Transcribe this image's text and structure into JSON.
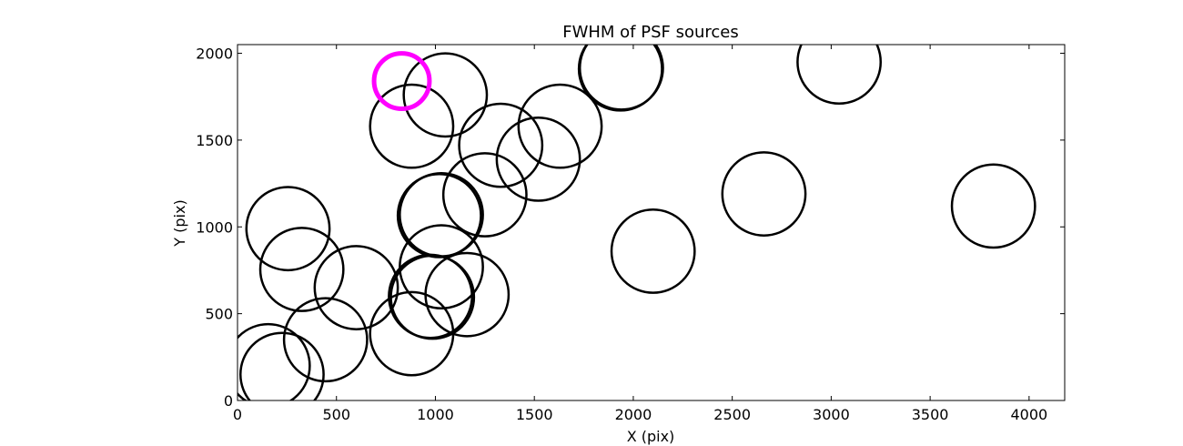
{
  "chart_data": {
    "type": "scatter",
    "title": "FWHM of PSF sources",
    "xlabel": "X (pix)",
    "ylabel": "Y (pix)",
    "xlim": [
      0,
      4180
    ],
    "ylim": [
      0,
      2050
    ],
    "xticks": [
      0,
      500,
      1000,
      1500,
      2000,
      2500,
      3000,
      3500,
      4000
    ],
    "yticks": [
      0,
      500,
      1000,
      1500,
      2000
    ],
    "grid": false,
    "legend": "none",
    "circle_radius_pix": 210,
    "colors": {
      "normal": "#000000",
      "highlight": "#ff00ff"
    },
    "sources": [
      {
        "x": 155,
        "y": 200,
        "highlight": false
      },
      {
        "x": 225,
        "y": 150,
        "highlight": false
      },
      {
        "x": 255,
        "y": 990,
        "highlight": false
      },
      {
        "x": 325,
        "y": 755,
        "highlight": false
      },
      {
        "x": 445,
        "y": 350,
        "highlight": false
      },
      {
        "x": 600,
        "y": 650,
        "highlight": false
      },
      {
        "x": 880,
        "y": 385,
        "highlight": false
      },
      {
        "x": 880,
        "y": 1580,
        "highlight": false
      },
      {
        "x": 975,
        "y": 600,
        "highlight": false
      },
      {
        "x": 985,
        "y": 595,
        "highlight": false
      },
      {
        "x": 1020,
        "y": 1065,
        "highlight": false
      },
      {
        "x": 1030,
        "y": 1070,
        "highlight": false
      },
      {
        "x": 1030,
        "y": 770,
        "highlight": false
      },
      {
        "x": 1050,
        "y": 1760,
        "highlight": false
      },
      {
        "x": 1160,
        "y": 610,
        "highlight": false
      },
      {
        "x": 1250,
        "y": 1185,
        "highlight": false
      },
      {
        "x": 1330,
        "y": 1470,
        "highlight": false
      },
      {
        "x": 1520,
        "y": 1390,
        "highlight": false
      },
      {
        "x": 1630,
        "y": 1580,
        "highlight": false
      },
      {
        "x": 1935,
        "y": 1910,
        "highlight": false
      },
      {
        "x": 1940,
        "y": 1915,
        "highlight": false
      },
      {
        "x": 2100,
        "y": 860,
        "highlight": false
      },
      {
        "x": 2660,
        "y": 1190,
        "highlight": false
      },
      {
        "x": 3040,
        "y": 1950,
        "highlight": false
      },
      {
        "x": 3820,
        "y": 1120,
        "highlight": false
      },
      {
        "x": 830,
        "y": 1840,
        "highlight": true,
        "radius_pix": 140
      }
    ]
  }
}
